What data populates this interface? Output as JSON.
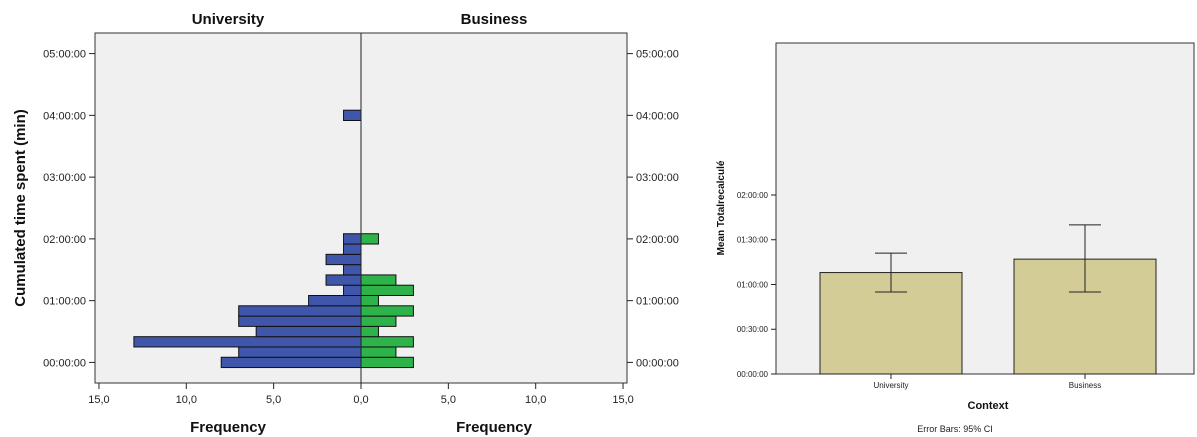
{
  "chart_data": [
    {
      "type": "bar",
      "subtype": "population-pyramid histogram",
      "panels": [
        {
          "title": "University",
          "color": "#3f56ab",
          "direction": "left"
        },
        {
          "title": "Business",
          "color": "#2eb34a",
          "direction": "right"
        }
      ],
      "ylabel": "Cumulated time spent (min)",
      "xlabel": "Frequency",
      "y_ticks": [
        "00:00:00",
        "01:00:00",
        "02:00:00",
        "03:00:00",
        "04:00:00",
        "05:00:00"
      ],
      "x_ticks_left": [
        "15,0",
        "10,0",
        "5,0",
        "0,0"
      ],
      "x_ticks_right": [
        "0,0",
        "5,0",
        "10,0",
        "15,0"
      ],
      "ylim_minutes": [
        -20,
        320
      ],
      "xlim": [
        0,
        15
      ],
      "bin_width_minutes": 10,
      "bins_minutes": [
        0,
        10,
        20,
        30,
        40,
        50,
        60,
        70,
        80,
        90,
        100,
        110,
        120,
        130,
        140,
        150,
        160,
        170,
        180,
        190,
        200,
        240
      ],
      "university_counts": [
        8,
        7,
        13,
        6,
        7,
        7,
        3,
        1,
        2,
        1,
        2,
        1,
        1,
        0,
        0,
        0,
        0,
        0,
        0,
        0,
        0,
        1
      ],
      "business_counts": [
        3,
        2,
        3,
        1,
        2,
        3,
        1,
        3,
        2,
        0,
        0,
        0,
        1,
        0,
        0,
        0,
        0,
        0,
        0,
        0,
        0,
        0
      ],
      "background": "#f0f0f0"
    },
    {
      "type": "bar",
      "categories": [
        "University",
        "Business"
      ],
      "values_minutes": [
        68,
        77
      ],
      "error_low_minutes": [
        55,
        55
      ],
      "error_high_minutes": [
        81,
        100
      ],
      "ylabel": "Mean Totalrecalculé",
      "xlabel": "Context",
      "y_ticks": [
        "00:00:00",
        "00:30:00",
        "01:00:00",
        "01:30:00",
        "02:00:00"
      ],
      "ylim_minutes": [
        0,
        134
      ],
      "bar_color": "#d4cc96",
      "footnote": "Error Bars: 95% CI",
      "background": "#f0f0f0"
    }
  ]
}
